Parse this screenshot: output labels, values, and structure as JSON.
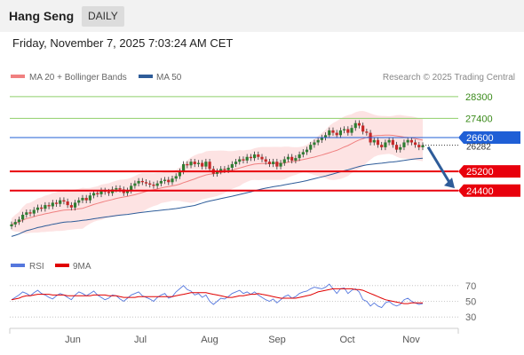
{
  "header": {
    "title": "Hang Seng",
    "period": "DAILY",
    "timestamp": "Friday, November 7, 2025 7:03:24 AM CET"
  },
  "colors": {
    "ma20": "#f08080",
    "ma50": "#2e5c99",
    "bollinger_fill": "#fde0e0",
    "resistance": "#8fcf6a",
    "resistance_text": "#3a8a1a",
    "pivot": "#1f5fd6",
    "support": "#e8000c",
    "rsi": "#5577dd",
    "rsi_ma": "#e00000",
    "candle_up": "#2e7d32",
    "candle_down": "#c62828",
    "arrow": "#2e5c99"
  },
  "chart_data": [
    {
      "type": "candlestick",
      "title": "Hang Seng",
      "legend": [
        {
          "name": "MA 20 + Bollinger Bands",
          "color": "#f08080"
        },
        {
          "name": "MA 50",
          "color": "#2e5c99"
        }
      ],
      "legend_position": "top-left",
      "credit": "Research © 2025 Trading Central",
      "ylim": [
        22000,
        28700
      ],
      "x_ticks": [
        "Jun",
        "Jul",
        "Aug",
        "Sep",
        "Oct",
        "Nov"
      ],
      "levels": [
        {
          "value": 28300,
          "label": "28300",
          "kind": "resistance"
        },
        {
          "value": 27400,
          "label": "27400",
          "kind": "resistance"
        },
        {
          "value": 26600,
          "label": "26600",
          "kind": "pivot"
        },
        {
          "value": 25200,
          "label": "25200",
          "kind": "support"
        },
        {
          "value": 24400,
          "label": "24400",
          "kind": "support"
        }
      ],
      "last_price_label": "26282",
      "forecast_arrow": "down",
      "close_series": [
        23000,
        23100,
        23200,
        23400,
        23500,
        23450,
        23600,
        23700,
        23650,
        23800,
        23750,
        23900,
        23850,
        24000,
        23950,
        23800,
        23700,
        23900,
        24000,
        24100,
        24000,
        24200,
        24300,
        24250,
        24400,
        24350,
        24300,
        24450,
        24500,
        24450,
        24300,
        24400,
        24600,
        24700,
        24800,
        24750,
        24700,
        24650,
        24600,
        24700,
        24800,
        24850,
        24750,
        24900,
        25000,
        25200,
        25500,
        25450,
        25600,
        25500,
        25550,
        25400,
        25600,
        25300,
        25100,
        25200,
        25300,
        25250,
        25350,
        25500,
        25600,
        25700,
        25650,
        25800,
        25750,
        25900,
        25800,
        25700,
        25600,
        25500,
        25600,
        25400,
        25550,
        25700,
        25800,
        25650,
        25750,
        25900,
        26000,
        26100,
        26300,
        26400,
        26500,
        26600,
        26700,
        26900,
        26800,
        26700,
        26900,
        26950,
        26800,
        27000,
        27200,
        27100,
        26850,
        26800,
        26400,
        26500,
        26300,
        26200,
        26400,
        26500,
        26300,
        26100,
        26200,
        26400,
        26500,
        26400,
        26300,
        26200,
        26282
      ]
    },
    {
      "type": "line",
      "legend": [
        {
          "name": "RSI",
          "color": "#5577dd"
        },
        {
          "name": "9MA",
          "color": "#e00000"
        }
      ],
      "ylim": [
        20,
        80
      ],
      "y_ticks": [
        70,
        50,
        30
      ],
      "rsi_series": [
        52,
        55,
        58,
        62,
        60,
        57,
        61,
        64,
        60,
        58,
        55,
        53,
        57,
        60,
        58,
        55,
        52,
        58,
        62,
        60,
        57,
        60,
        63,
        58,
        55,
        52,
        54,
        58,
        57,
        53,
        50,
        54,
        58,
        60,
        62,
        57,
        55,
        53,
        50,
        55,
        58,
        60,
        54,
        56,
        62,
        66,
        70,
        65,
        63,
        58,
        60,
        55,
        58,
        50,
        46,
        50,
        54,
        53,
        56,
        60,
        62,
        64,
        60,
        62,
        59,
        62,
        58,
        55,
        52,
        50,
        53,
        48,
        52,
        56,
        58,
        54,
        56,
        60,
        62,
        63,
        66,
        68,
        67,
        66,
        68,
        72,
        66,
        60,
        66,
        67,
        60,
        64,
        66,
        62,
        52,
        50,
        44,
        48,
        44,
        42,
        48,
        50,
        46,
        44,
        46,
        52,
        54,
        50,
        48,
        46,
        47
      ],
      "ma_series": [
        52,
        53,
        54,
        56,
        57,
        57,
        58,
        59,
        59,
        59,
        59,
        58,
        58,
        58,
        58,
        57,
        57,
        57,
        57,
        57,
        57,
        57,
        58,
        58,
        58,
        58,
        57,
        57,
        57,
        56,
        55,
        55,
        55,
        55,
        56,
        56,
        56,
        56,
        56,
        56,
        56,
        56,
        56,
        56,
        57,
        58,
        59,
        60,
        61,
        61,
        61,
        61,
        61,
        60,
        59,
        58,
        57,
        56,
        55,
        55,
        56,
        57,
        57,
        58,
        59,
        59,
        60,
        59,
        58,
        57,
        56,
        55,
        54,
        54,
        54,
        54,
        54,
        55,
        56,
        57,
        58,
        60,
        62,
        63,
        64,
        65,
        66,
        66,
        66,
        66,
        66,
        66,
        65,
        65,
        64,
        62,
        60,
        58,
        56,
        54,
        52,
        51,
        50,
        49,
        48,
        47,
        47,
        48,
        48,
        48,
        48
      ]
    }
  ],
  "rsi_legend": {
    "rsi": "RSI",
    "ma": "9MA"
  },
  "price_legend": {
    "ma20": "MA 20 + Bollinger Bands",
    "ma50": "MA 50"
  }
}
